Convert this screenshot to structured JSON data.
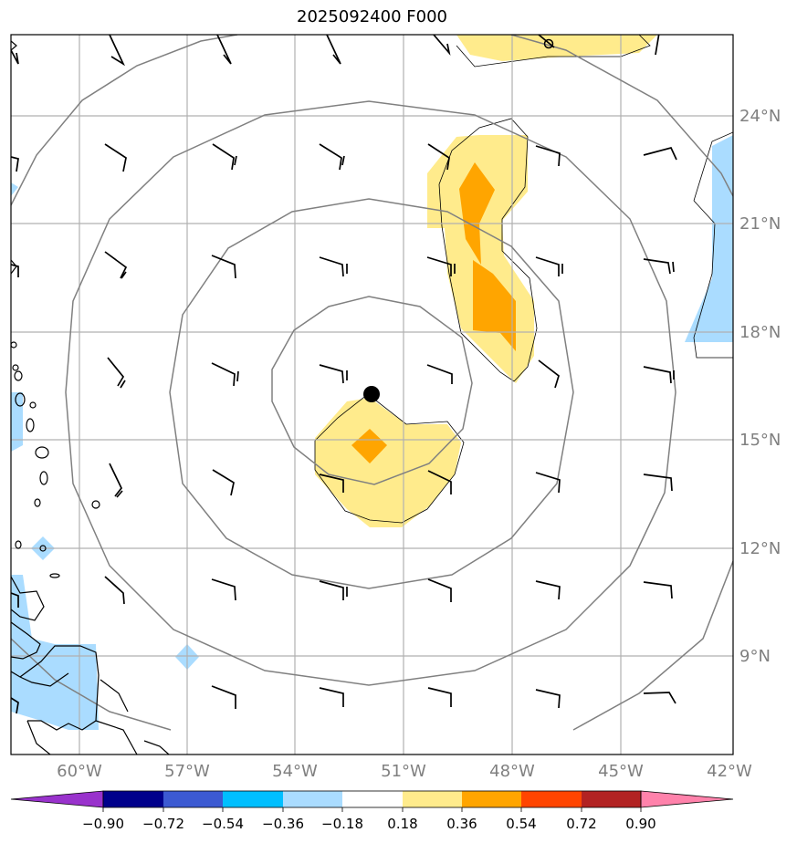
{
  "title": "2025092400 F000",
  "map": {
    "lon_ticks": [
      "60°W",
      "57°W",
      "54°W",
      "51°W",
      "48°W",
      "45°W",
      "42°W"
    ],
    "lat_ticks": [
      "24°N",
      "21°N",
      "18°N",
      "15°N",
      "12°N",
      "9°N"
    ],
    "lon_range": [
      -62,
      -42
    ],
    "lat_range": [
      6.8,
      26.7
    ],
    "center_marker": {
      "lon": -52.0,
      "lat": 16.3
    },
    "range_rings": 4,
    "colors": {
      "grid": "#b0b0b0",
      "rings": "#808080",
      "coast": "#000000",
      "barbs": "#000000",
      "positive_1": "#ffeb8c",
      "positive_2": "#ffa500",
      "negative_1": "#aadcff"
    }
  },
  "colorbar": {
    "labels": [
      "−0.90",
      "−0.72",
      "−0.54",
      "−0.36",
      "−0.18",
      "0.18",
      "0.36",
      "0.54",
      "0.72",
      "0.90"
    ],
    "colors": [
      "#9932cc",
      "#00008b",
      "#3c5ad2",
      "#00bfff",
      "#aadcff",
      "#ffffff",
      "#ffeb8c",
      "#ffa500",
      "#ff4500",
      "#b22222",
      "#ff82ab"
    ]
  }
}
